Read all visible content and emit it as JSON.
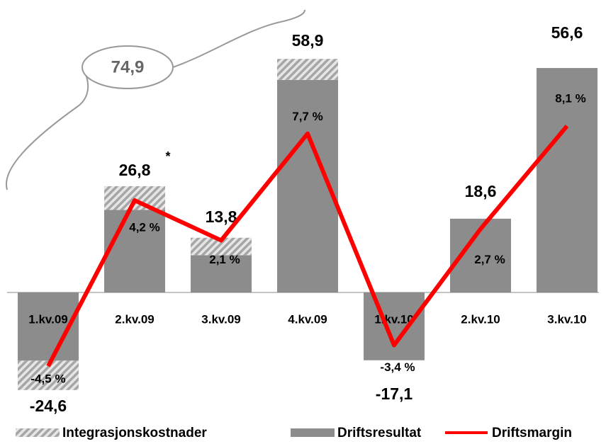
{
  "chart_data": {
    "type": "stacked-bar-line",
    "categories": [
      "1.kv.09",
      "2.kv.09",
      "3.kv.09",
      "4.kv.09",
      "1.kv.10",
      "2.kv.10",
      "3.kv.10"
    ],
    "series": [
      {
        "name": "Driftsresultat",
        "color": "#8c8c8c",
        "values": [
          -17.2,
          20.8,
          9.4,
          53.6,
          -17.1,
          18.6,
          56.6
        ]
      },
      {
        "name": "Integrasjonskostnader",
        "color": "#a6a6a6",
        "pattern": "hatch",
        "values": [
          -7.4,
          6.0,
          4.4,
          5.3,
          0,
          0,
          0
        ]
      },
      {
        "name": "Driftsmargin",
        "color": "#ff0000",
        "type": "line",
        "axis": "y2",
        "values": [
          -4.5,
          4.2,
          2.1,
          7.7,
          -3.4,
          2.7,
          8.1
        ],
        "value_labels": [
          "-4,5 %",
          "4,2 %",
          "2,1 %",
          "7,7 %",
          "-3,4 %",
          "2,7 %",
          "8,1 %"
        ]
      }
    ],
    "totals": [
      -24.6,
      26.8,
      13.8,
      58.9,
      -17.1,
      18.6,
      56.6
    ],
    "total_labels": [
      "-24,6",
      "26,8",
      "13,8",
      "58,9",
      "-17,1",
      "18,6",
      "56,6"
    ],
    "annotations": [
      "74,9",
      "*"
    ],
    "ylim": [
      -33,
      66
    ],
    "y2lim": [
      -7.5,
      13.1
    ],
    "legend": "bottom"
  }
}
